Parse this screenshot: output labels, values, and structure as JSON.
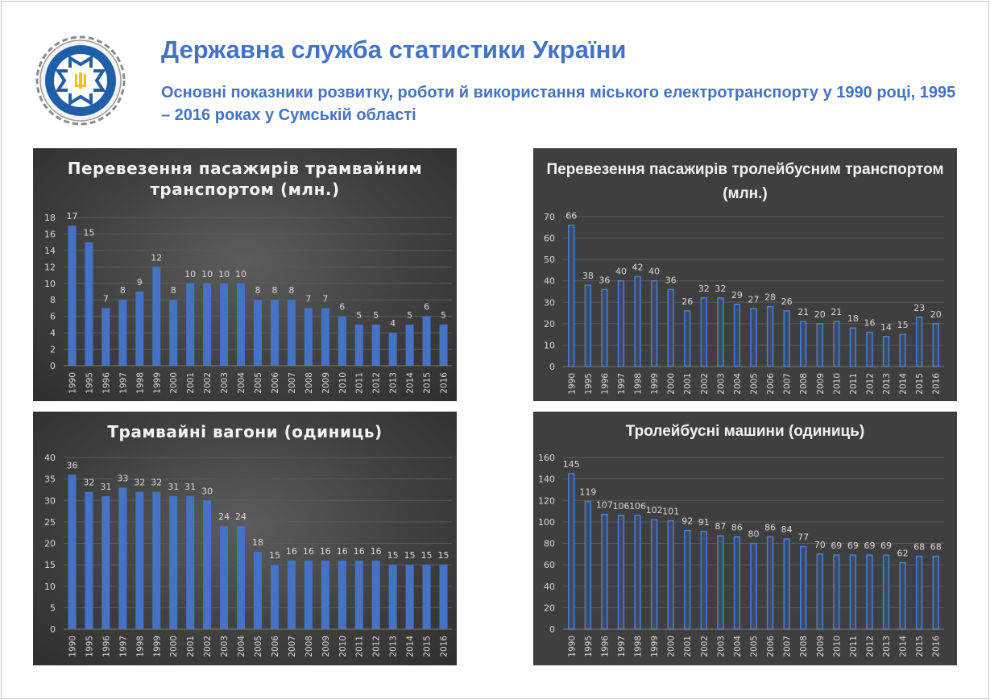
{
  "header": {
    "title": "Державна служба статистики України",
    "subtitle": "Основні показники розвитку, роботи й використання міського електротранспорту у 1990 році, 1995 – 2016 роках у Сумській області"
  },
  "colors": {
    "accent": "#4472c4",
    "bar_fill": "#4472c4",
    "panel_bg": "#3f3f3f",
    "text": "#d9d9d9"
  },
  "chart_data": [
    {
      "type": "bar",
      "title": "Перевезення пасажирів трамвайним транспортом (млн.)",
      "categories": [
        "1990",
        "1995",
        "1996",
        "1997",
        "1998",
        "1999",
        "2000",
        "2001",
        "2002",
        "2003",
        "2004",
        "2005",
        "2006",
        "2007",
        "2008",
        "2009",
        "2010",
        "2011",
        "2012",
        "2013",
        "2014",
        "2015",
        "2016"
      ],
      "values": [
        17,
        15,
        7,
        8,
        9,
        12,
        8,
        10,
        10,
        10,
        10,
        8,
        8,
        8,
        7,
        7,
        6,
        5,
        5,
        4,
        5,
        6,
        5
      ],
      "ylim": [
        0,
        18
      ],
      "yticks": [
        0,
        2,
        4,
        6,
        8,
        10,
        12,
        14,
        16,
        18
      ],
      "grid": true,
      "style": "filled"
    },
    {
      "type": "bar",
      "title": "Перевезення пасажирів тролейбусним транспортом (млн.)",
      "categories": [
        "1990",
        "1995",
        "1996",
        "1997",
        "1998",
        "1999",
        "2000",
        "2001",
        "2002",
        "2003",
        "2004",
        "2005",
        "2006",
        "2007",
        "2008",
        "2009",
        "2010",
        "2011",
        "2012",
        "2013",
        "2014",
        "2015",
        "2016"
      ],
      "values": [
        66,
        38,
        36,
        40,
        42,
        40,
        36,
        26,
        32,
        32,
        29,
        27,
        28,
        26,
        21,
        20,
        21,
        18,
        16,
        14,
        15,
        23,
        20
      ],
      "ylim": [
        0,
        70
      ],
      "yticks": [
        0,
        10,
        20,
        30,
        40,
        50,
        60,
        70
      ],
      "grid": true,
      "style": "outline"
    },
    {
      "type": "bar",
      "title": "Трамвайні вагони (одиниць)",
      "categories": [
        "1990",
        "1995",
        "1996",
        "1997",
        "1998",
        "1999",
        "2000",
        "2001",
        "2002",
        "2003",
        "2004",
        "2005",
        "2006",
        "2007",
        "2008",
        "2009",
        "2010",
        "2011",
        "2012",
        "2013",
        "2014",
        "2015",
        "2016"
      ],
      "values": [
        36,
        32,
        31,
        33,
        32,
        32,
        31,
        31,
        30,
        24,
        24,
        18,
        15,
        16,
        16,
        16,
        16,
        16,
        16,
        15,
        15,
        15,
        15
      ],
      "ylim": [
        0,
        40
      ],
      "yticks": [
        0,
        5,
        10,
        15,
        20,
        25,
        30,
        35,
        40
      ],
      "grid": true,
      "style": "filled"
    },
    {
      "type": "bar",
      "title": "Тролейбусні машини (одиниць)",
      "categories": [
        "1990",
        "1995",
        "1996",
        "1997",
        "1998",
        "1999",
        "2000",
        "2001",
        "2002",
        "2003",
        "2004",
        "2005",
        "2006",
        "2007",
        "2008",
        "2009",
        "2010",
        "2011",
        "2012",
        "2013",
        "2014",
        "2015",
        "2016"
      ],
      "values": [
        145,
        119,
        107,
        106,
        106,
        102,
        101,
        92,
        91,
        87,
        86,
        80,
        86,
        84,
        77,
        70,
        69,
        69,
        69,
        69,
        62,
        68,
        68
      ],
      "ylim": [
        0,
        160
      ],
      "yticks": [
        0,
        20,
        40,
        60,
        80,
        100,
        120,
        140,
        160
      ],
      "grid": true,
      "style": "outline"
    }
  ]
}
